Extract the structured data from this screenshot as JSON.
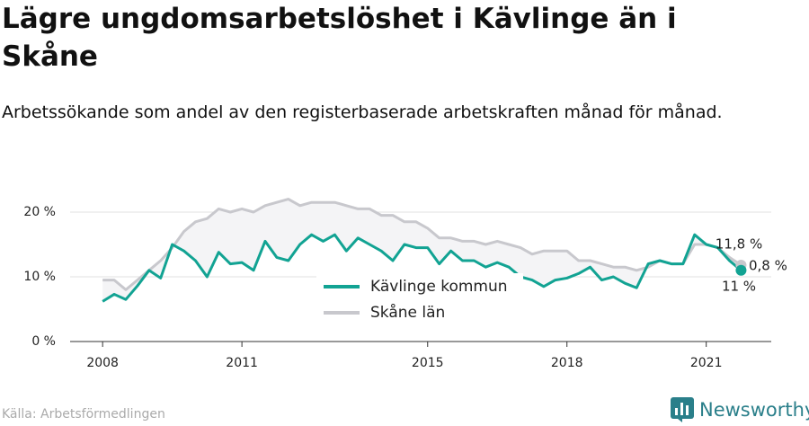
{
  "chart_data": {
    "type": "line",
    "title": "Lägre ungdomsarbetslöshet i Kävlinge än i Skåne",
    "subtitle": "Arbetssökande som andel av den registerbaserade arbetskraften månad för månad.",
    "source": "Källa: Arbetsförmedlingen",
    "brand": "Newsworthy",
    "x": [
      2008,
      2008.25,
      2008.5,
      2008.75,
      2009,
      2009.25,
      2009.5,
      2009.75,
      2010,
      2010.25,
      2010.5,
      2010.75,
      2011,
      2011.25,
      2011.5,
      2011.75,
      2012,
      2012.25,
      2012.5,
      2012.75,
      2013,
      2013.25,
      2013.5,
      2013.75,
      2014,
      2014.25,
      2014.5,
      2014.75,
      2015,
      2015.25,
      2015.5,
      2015.75,
      2016,
      2016.25,
      2016.5,
      2016.75,
      2017,
      2017.25,
      2017.5,
      2017.75,
      2018,
      2018.25,
      2018.5,
      2018.75,
      2019,
      2019.25,
      2019.5,
      2019.75,
      2020,
      2020.25,
      2020.5,
      2020.75,
      2021,
      2021.25,
      2021.5,
      2021.75
    ],
    "series": [
      {
        "name": "Kävlinge kommun",
        "color": "#12a393",
        "values": [
          6.2,
          7.3,
          6.5,
          8.6,
          11,
          9.8,
          15,
          14,
          12.5,
          10,
          13.8,
          12,
          12.2,
          11,
          15.5,
          13,
          12.5,
          15,
          16.5,
          15.5,
          16.5,
          14,
          16,
          15,
          14,
          12.5,
          15,
          14.5,
          14.5,
          12,
          14,
          12.5,
          12.5,
          11.5,
          12.2,
          11.5,
          10,
          9.5,
          8.5,
          9.5,
          9.8,
          10.5,
          11.5,
          9.5,
          10,
          9,
          8.3,
          12,
          12.5,
          12,
          12,
          16.5,
          15,
          14.5,
          12.5,
          11
        ]
      },
      {
        "name": "Skåne län",
        "color": "#c8c8cd",
        "values": [
          9.5,
          9.5,
          8,
          9.5,
          11,
          12.5,
          14.5,
          17,
          18.5,
          19,
          20.5,
          20,
          20.5,
          20,
          21,
          21.5,
          22,
          21,
          21.5,
          21.5,
          21.5,
          21,
          20.5,
          20.5,
          19.5,
          19.5,
          18.5,
          18.5,
          17.5,
          16,
          16,
          15.5,
          15.5,
          15,
          15.5,
          15,
          14.5,
          13.5,
          14,
          14,
          14,
          12.5,
          12.5,
          12,
          11.5,
          11.5,
          11,
          11.5,
          12.5,
          12,
          12,
          15,
          15,
          14.5,
          13,
          11.8
        ]
      }
    ],
    "annotations": [
      "11,8 %",
      "0,8 %",
      "11 %"
    ],
    "xlim": [
      2007.3,
      2022.4
    ],
    "xticks": [
      2008,
      2011,
      2015,
      2018,
      2021
    ],
    "ylim": [
      0,
      25
    ],
    "yticks": [
      {
        "value": 0,
        "label": "0 %"
      },
      {
        "value": 10,
        "label": "10 %"
      },
      {
        "value": 20,
        "label": "20 %"
      }
    ],
    "grid": true,
    "fill_between": "#f4f4f6"
  }
}
